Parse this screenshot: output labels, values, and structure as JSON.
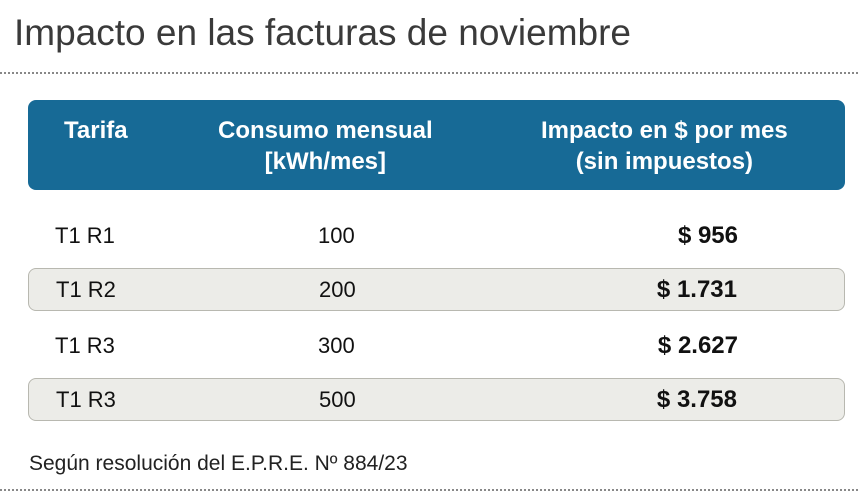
{
  "header": {
    "title": "Impacto en las facturas de noviembre"
  },
  "table": {
    "columns": [
      [
        "Tarifa"
      ],
      [
        "Consumo mensual",
        "[kWh/mes]"
      ],
      [
        "Impacto en $ por mes",
        "(sin impuestos)"
      ]
    ],
    "rows": [
      [
        "T1 R1",
        "100",
        "$ 956"
      ],
      [
        "T1 R2",
        "200",
        "$ 1.731"
      ],
      [
        "T1 R3",
        "300",
        "$ 2.627"
      ],
      [
        "T1 R3",
        "500",
        "$ 3.758"
      ]
    ]
  },
  "footer": {
    "note": "Según resolución del E.P.R.E. Nº 884/23"
  }
}
